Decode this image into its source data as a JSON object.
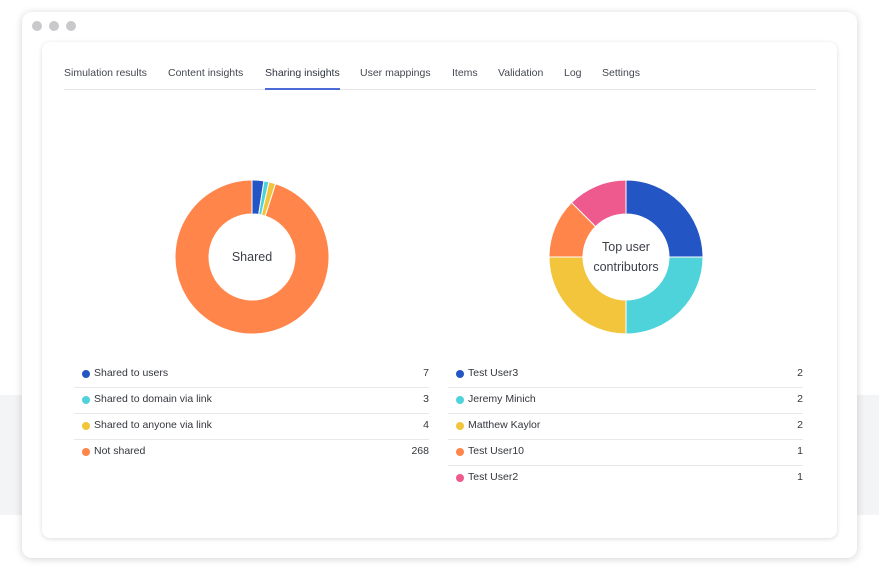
{
  "tabs": [
    {
      "label": "Simulation results"
    },
    {
      "label": "Content insights"
    },
    {
      "label": "Sharing insights",
      "active": true
    },
    {
      "label": "User mappings"
    },
    {
      "label": "Items"
    },
    {
      "label": "Validation"
    },
    {
      "label": "Log"
    },
    {
      "label": "Settings"
    }
  ],
  "sharing": {
    "center_label": "Shared",
    "chart_data": {
      "type": "pie",
      "categories": [
        "Shared to users",
        "Shared to domain via link",
        "Shared to anyone via link",
        "Not shared"
      ],
      "values": [
        7,
        3,
        4,
        268
      ],
      "colors": [
        "#2356c4",
        "#4fd3da",
        "#f2c53d",
        "#ff854a"
      ]
    },
    "legend": [
      {
        "label": "Shared to users",
        "value": "7",
        "color": "#2356c4"
      },
      {
        "label": "Shared to domain via link",
        "value": "3",
        "color": "#4fd3da"
      },
      {
        "label": "Shared to anyone via link",
        "value": "4",
        "color": "#f2c53d"
      },
      {
        "label": "Not shared",
        "value": "268",
        "color": "#ff854a"
      }
    ]
  },
  "contributors": {
    "center_label": "Top user\ncontributors",
    "chart_data": {
      "type": "pie",
      "categories": [
        "Test User3",
        "Jeremy Minich",
        "Matthew Kaylor",
        "Test User10",
        "Test User2"
      ],
      "values": [
        2,
        2,
        2,
        1,
        1
      ],
      "colors": [
        "#2356c4",
        "#4fd3da",
        "#f2c53d",
        "#ff854a",
        "#ef5a8e"
      ]
    },
    "legend": [
      {
        "label": "Test User3",
        "value": "2",
        "color": "#2356c4"
      },
      {
        "label": "Jeremy Minich",
        "value": "2",
        "color": "#4fd3da"
      },
      {
        "label": "Matthew Kaylor",
        "value": "2",
        "color": "#f2c53d"
      },
      {
        "label": "Test User10",
        "value": "1",
        "color": "#ff854a"
      },
      {
        "label": "Test User2",
        "value": "1",
        "color": "#ef5a8e"
      }
    ]
  }
}
